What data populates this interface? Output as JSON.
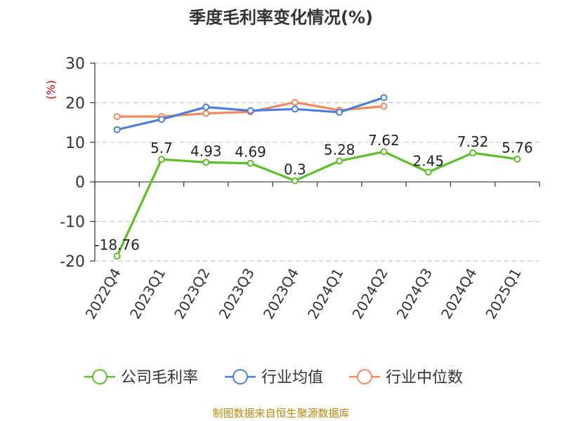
{
  "chart_data": {
    "type": "line",
    "title": "季度毛利率变化情况(%)",
    "ylabel": "(%)",
    "ylim": [
      -20,
      30
    ],
    "yticks": [
      30,
      20,
      10,
      0,
      -10,
      -20
    ],
    "categories": [
      "2022Q4",
      "2023Q1",
      "2023Q2",
      "2023Q3",
      "2023Q4",
      "2024Q1",
      "2024Q2",
      "2024Q3",
      "2024Q4",
      "2025Q1"
    ],
    "series": [
      {
        "name": "公司毛利率",
        "color": "#5cbf2a",
        "labels": true,
        "values": [
          -18.76,
          5.7,
          4.93,
          4.69,
          0.3,
          5.28,
          7.62,
          2.45,
          7.32,
          5.76
        ]
      },
      {
        "name": "行业均值",
        "color": "#4a7fd9",
        "labels": false,
        "values": [
          13.2,
          15.8,
          18.9,
          18.0,
          18.4,
          17.6,
          21.3,
          null,
          null,
          null
        ]
      },
      {
        "name": "行业中位数",
        "color": "#f08a5d",
        "labels": false,
        "values": [
          16.5,
          16.5,
          17.3,
          17.7,
          20.1,
          18.1,
          19.1,
          null,
          null,
          null
        ]
      }
    ],
    "grid": "horizontal dashed",
    "legend": "bottom"
  },
  "footer": {
    "source": "制图数据来自恒生聚源数据库"
  }
}
